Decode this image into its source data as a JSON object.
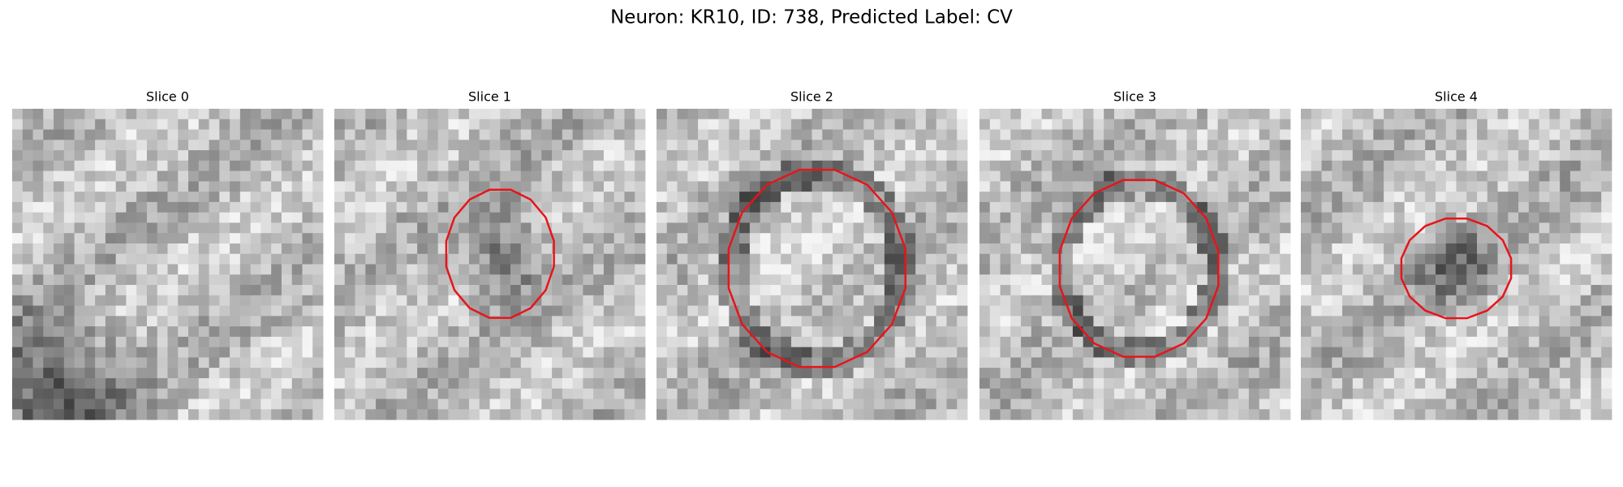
{
  "title": "Neuron: KR10, ID: 738, Predicted Label: CV",
  "panels": [
    {
      "title": "Slice 0"
    },
    {
      "title": "Slice 1"
    },
    {
      "title": "Slice 2"
    },
    {
      "title": "Slice 3"
    },
    {
      "title": "Slice 4"
    }
  ]
}
